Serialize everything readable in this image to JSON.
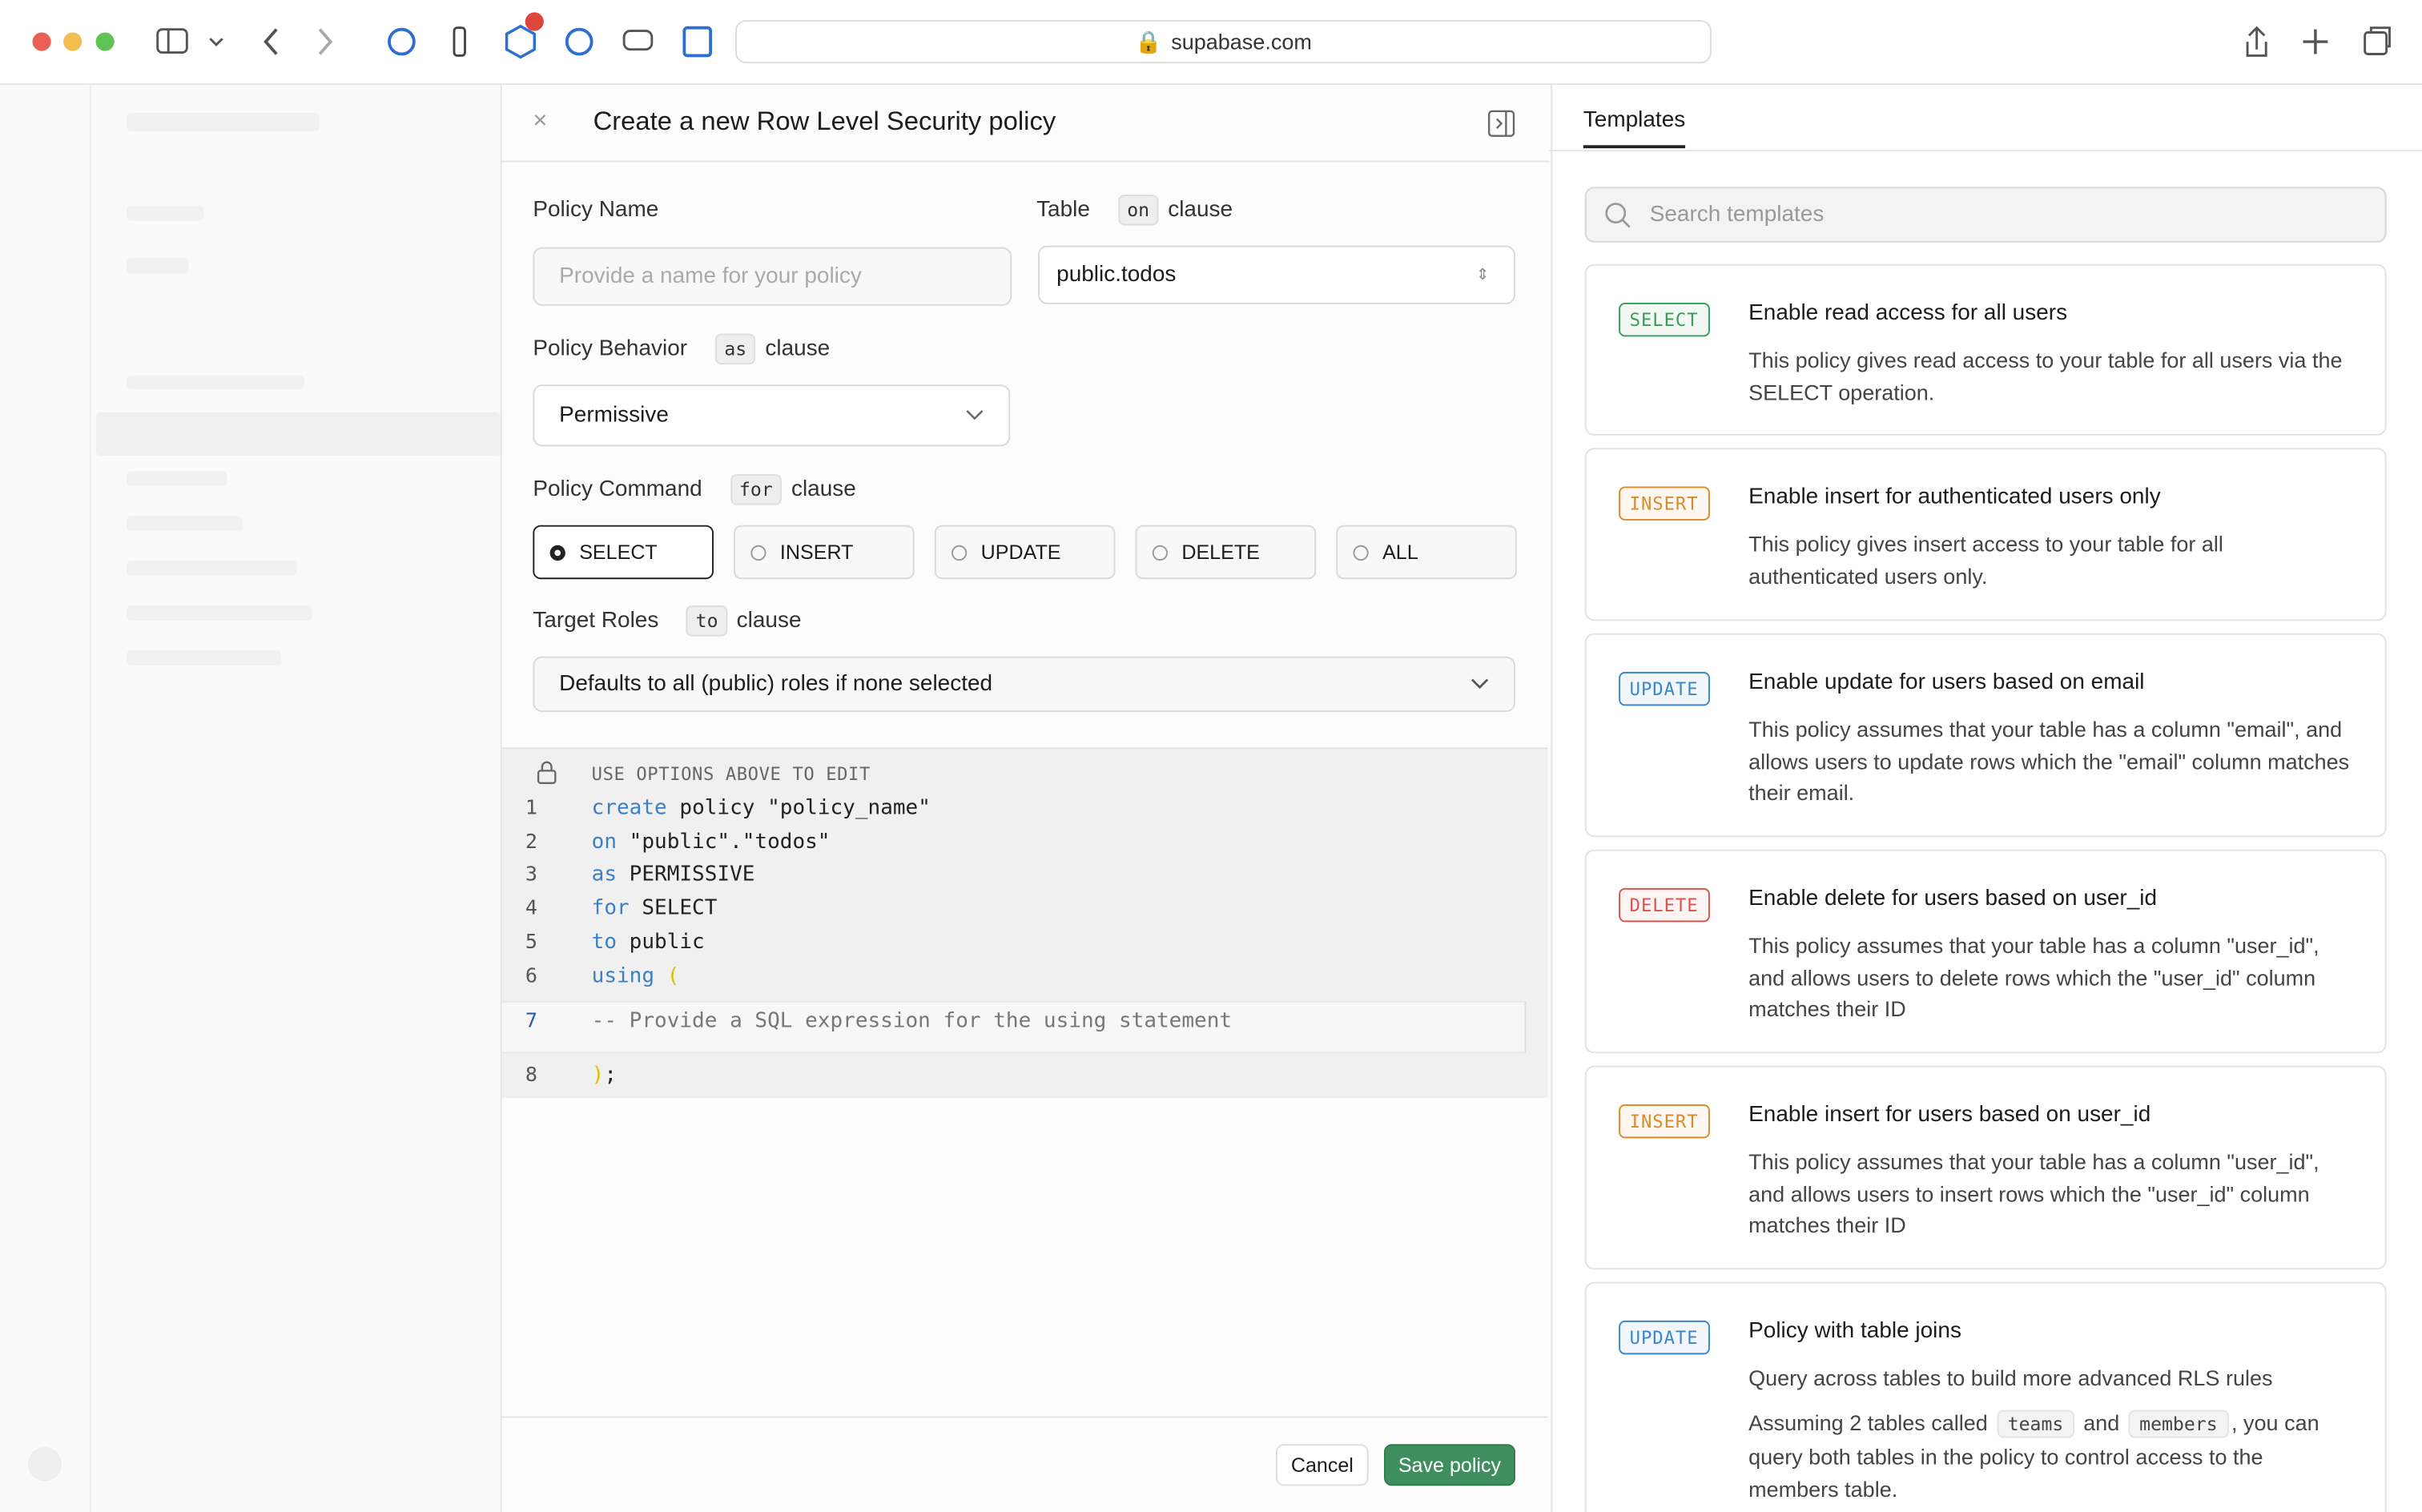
{
  "browser": {
    "url": "supabase.com"
  },
  "panel": {
    "title": "Create a new Row Level Security policy",
    "policy_name": {
      "label": "Policy Name",
      "placeholder": "Provide a name for your policy"
    },
    "table": {
      "label": "Table",
      "chip": "on",
      "suffix": "clause",
      "value": "public.todos"
    },
    "behavior": {
      "label": "Policy Behavior",
      "chip": "as",
      "suffix": "clause",
      "value": "Permissive"
    },
    "command": {
      "label": "Policy Command",
      "chip": "for",
      "suffix": "clause",
      "options": [
        {
          "label": "SELECT",
          "selected": true
        },
        {
          "label": "INSERT",
          "selected": false
        },
        {
          "label": "UPDATE",
          "selected": false
        },
        {
          "label": "DELETE",
          "selected": false
        },
        {
          "label": "ALL",
          "selected": false
        }
      ]
    },
    "roles": {
      "label": "Target Roles",
      "chip": "to",
      "suffix": "clause",
      "value": "Defaults to all (public) roles if none selected"
    },
    "editor": {
      "notice": "USE OPTIONS ABOVE TO EDIT",
      "lines": [
        {
          "number": "1",
          "tokens": [
            {
              "text": "create",
              "kind": "keyword"
            },
            {
              "text": " policy \"policy_name\"",
              "kind": "plain"
            }
          ]
        },
        {
          "number": "2",
          "tokens": [
            {
              "text": "on",
              "kind": "keyword"
            },
            {
              "text": " \"public\".\"todos\"",
              "kind": "plain"
            }
          ]
        },
        {
          "number": "3",
          "tokens": [
            {
              "text": "as",
              "kind": "keyword"
            },
            {
              "text": " PERMISSIVE",
              "kind": "plain"
            }
          ]
        },
        {
          "number": "4",
          "tokens": [
            {
              "text": "for",
              "kind": "keyword"
            },
            {
              "text": " SELECT",
              "kind": "plain"
            }
          ]
        },
        {
          "number": "5",
          "tokens": [
            {
              "text": "to",
              "kind": "keyword"
            },
            {
              "text": " public",
              "kind": "plain"
            }
          ]
        },
        {
          "number": "6",
          "tokens": [
            {
              "text": "using",
              "kind": "keyword"
            },
            {
              "text": " (",
              "kind": "paren"
            }
          ]
        },
        {
          "number": "7",
          "tokens": [
            {
              "text": "-- Provide a SQL expression for the using statement",
              "kind": "comment"
            }
          ]
        },
        {
          "number": "8",
          "tokens": [
            {
              "text": ")",
              "kind": "paren"
            },
            {
              "text": ";",
              "kind": "plain"
            }
          ]
        }
      ]
    },
    "footer": {
      "cancel": "Cancel",
      "save": "Save policy"
    }
  },
  "templates": {
    "tab": "Templates",
    "search_placeholder": "Search templates",
    "items": [
      {
        "badge": "SELECT",
        "badge_color": "#3a9a5b",
        "title": "Enable read access for all users",
        "description": [
          {
            "text": "This policy gives read access to your table for all users via the SELECT operation."
          }
        ]
      },
      {
        "badge": "INSERT",
        "badge_color": "#d98a2b",
        "title": "Enable insert for authenticated users only",
        "description": [
          {
            "text": "This policy gives insert access to your table for all authenticated users only."
          }
        ]
      },
      {
        "badge": "UPDATE",
        "badge_color": "#3b86c8",
        "title": "Enable update for users based on email",
        "description": [
          {
            "text": "This policy assumes that your table has a column \"email\", and allows users to update rows which the \"email\" column matches their email."
          }
        ]
      },
      {
        "badge": "DELETE",
        "badge_color": "#d9534f",
        "title": "Enable delete for users based on user_id",
        "description": [
          {
            "text": "This policy assumes that your table has a column \"user_id\", and allows users to delete rows which the \"user_id\" column matches their ID"
          }
        ]
      },
      {
        "badge": "INSERT",
        "badge_color": "#d98a2b",
        "title": "Enable insert for users based on user_id",
        "description": [
          {
            "text": "This policy assumes that your table has a column \"user_id\", and allows users to insert rows which the \"user_id\" column matches their ID"
          }
        ]
      },
      {
        "badge": "UPDATE",
        "badge_color": "#3b86c8",
        "title": "Policy with table joins",
        "subtitle": "Query across tables to build more advanced RLS rules",
        "description": [
          {
            "text": "Assuming 2 tables called "
          },
          {
            "code": "teams"
          },
          {
            "text": " and "
          },
          {
            "code": "members"
          },
          {
            "text": ", you can query both tables in the policy to control access to the members table."
          }
        ]
      }
    ]
  }
}
